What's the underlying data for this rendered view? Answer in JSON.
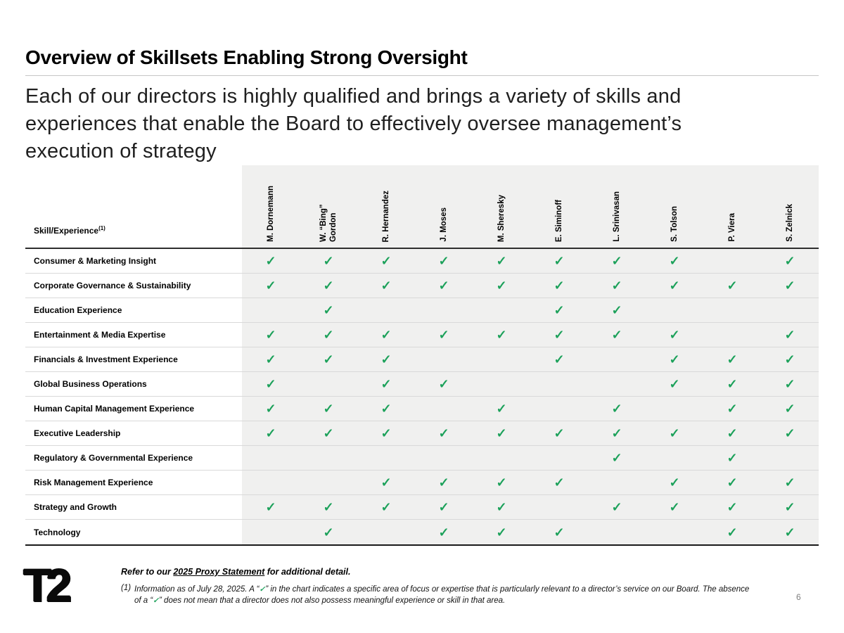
{
  "slide": {
    "title": "Overview of Skillsets Enabling Strong Oversight",
    "subtitle_lines": [
      "Each of our directors is highly qualified and brings a variety of skills and",
      "experiences that enable the Board to effectively oversee management’s",
      "execution of strategy"
    ],
    "logo_text": "T2",
    "page_number": "6"
  },
  "table": {
    "corner_label": "Skill/Experience",
    "corner_superscript": "(1)",
    "check_glyph": "✓",
    "check_color": "#1CA15A",
    "cell_background": "#F0F0EF",
    "directors": [
      "M. Dornemann",
      "W. “Bing” Gordon",
      "R. Hernandez",
      "J. Moses",
      "M. Sheresky",
      "E. Siminoff",
      "L. Srinivasan",
      "S. Tolson",
      "P. Viera",
      "S. Zelnick"
    ],
    "rows": [
      {
        "skill": "Consumer & Marketing Insight",
        "checks": [
          1,
          1,
          1,
          1,
          1,
          1,
          1,
          1,
          0,
          1
        ]
      },
      {
        "skill": "Corporate Governance & Sustainability",
        "checks": [
          1,
          1,
          1,
          1,
          1,
          1,
          1,
          1,
          1,
          1
        ]
      },
      {
        "skill": "Education Experience",
        "checks": [
          0,
          1,
          0,
          0,
          0,
          1,
          1,
          0,
          0,
          0
        ]
      },
      {
        "skill": "Entertainment & Media Expertise",
        "checks": [
          1,
          1,
          1,
          1,
          1,
          1,
          1,
          1,
          0,
          1
        ]
      },
      {
        "skill": "Financials & Investment Experience",
        "checks": [
          1,
          1,
          1,
          0,
          0,
          1,
          0,
          1,
          1,
          1
        ]
      },
      {
        "skill": "Global Business Operations",
        "checks": [
          1,
          0,
          1,
          1,
          0,
          0,
          0,
          1,
          1,
          1
        ]
      },
      {
        "skill": "Human Capital Management Experience",
        "checks": [
          1,
          1,
          1,
          0,
          1,
          0,
          1,
          0,
          1,
          1
        ]
      },
      {
        "skill": "Executive Leadership",
        "checks": [
          1,
          1,
          1,
          1,
          1,
          1,
          1,
          1,
          1,
          1
        ]
      },
      {
        "skill": "Regulatory & Governmental Experience",
        "checks": [
          0,
          0,
          0,
          0,
          0,
          0,
          1,
          0,
          1,
          0
        ]
      },
      {
        "skill": "Risk Management Experience",
        "checks": [
          0,
          0,
          1,
          1,
          1,
          1,
          0,
          1,
          1,
          1
        ]
      },
      {
        "skill": "Strategy and Growth",
        "checks": [
          1,
          1,
          1,
          1,
          1,
          0,
          1,
          1,
          1,
          1
        ]
      },
      {
        "skill": "Technology",
        "checks": [
          0,
          1,
          0,
          1,
          1,
          1,
          0,
          0,
          1,
          1
        ]
      }
    ]
  },
  "footer": {
    "refer_prefix": "Refer to our ",
    "refer_link": "2025 Proxy Statement",
    "refer_suffix": " for additional detail.",
    "footnote": {
      "marker": "(1)",
      "seg1": "Information as of July 28, 2025. A “",
      "check": "✓",
      "seg2": "” in the chart indicates a specific area of focus or expertise that is particularly relevant to a director’s service on our Board. The absence of a “",
      "seg3": "” does not mean that a director does not also possess meaningful experience or skill in that area."
    }
  }
}
